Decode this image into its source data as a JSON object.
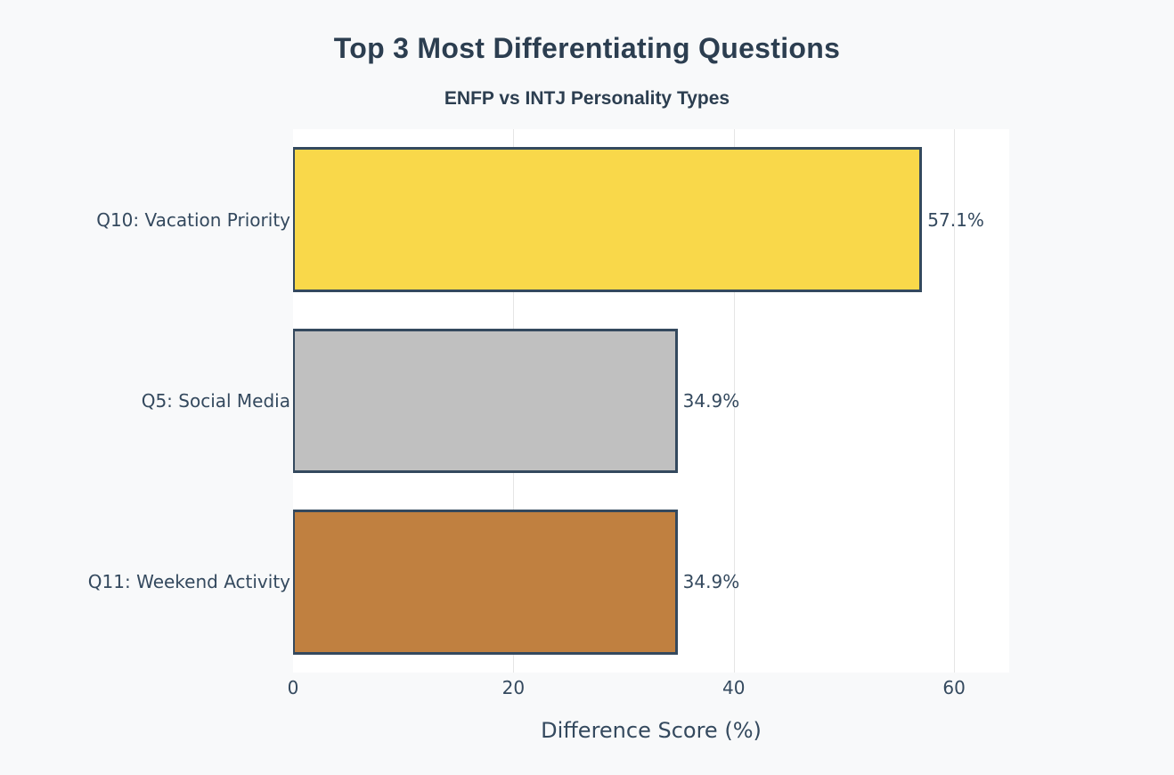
{
  "chart_data": {
    "type": "bar",
    "orientation": "horizontal",
    "title": "Top 3 Most Differentiating Questions",
    "subtitle": "ENFP vs INTJ Personality Types",
    "xlabel": "Difference Score (%)",
    "ylabel": "",
    "xlim": [
      0,
      65
    ],
    "xticks": [
      0,
      20,
      40,
      60
    ],
    "grid": true,
    "legend": false,
    "categories": [
      "Q10: Vacation Priority",
      "Q5: Social Media",
      "Q11: Weekend Activity"
    ],
    "values": [
      57.1,
      34.9,
      34.9
    ],
    "value_labels": [
      "57.1%",
      "34.9%",
      "34.9%"
    ],
    "colors": [
      "#F9D84A",
      "#C0C0C0",
      "#C08040"
    ],
    "border_color": "#34495e"
  }
}
